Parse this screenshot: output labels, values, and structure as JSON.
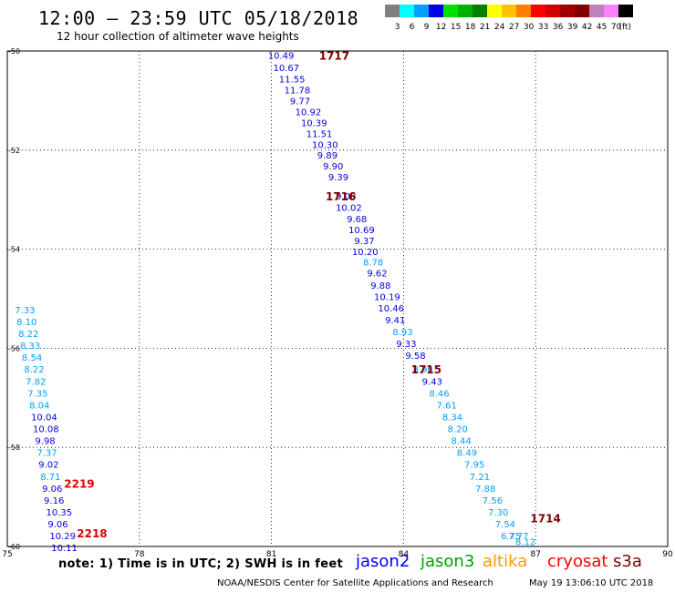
{
  "header": {
    "title": "12:00 – 23:59 UTC 05/18/2018",
    "subtitle": "12 hour collection of altimeter wave heights"
  },
  "legend": {
    "unit": "(ft)",
    "bins": [
      {
        "label": "3",
        "color": "#808080"
      },
      {
        "label": "6",
        "color": "#00ffff"
      },
      {
        "label": "9",
        "color": "#00a0ff"
      },
      {
        "label": "12",
        "color": "#0000e0"
      },
      {
        "label": "15",
        "color": "#00e000"
      },
      {
        "label": "18",
        "color": "#00b000"
      },
      {
        "label": "21",
        "color": "#008000"
      },
      {
        "label": "24",
        "color": "#ffff00"
      },
      {
        "label": "27",
        "color": "#ffc000"
      },
      {
        "label": "30",
        "color": "#ff8000"
      },
      {
        "label": "33",
        "color": "#ff0000"
      },
      {
        "label": "36",
        "color": "#d00000"
      },
      {
        "label": "39",
        "color": "#a00000"
      },
      {
        "label": "42",
        "color": "#800000"
      },
      {
        "label": "45",
        "color": "#c080c0"
      },
      {
        "label": "70",
        "color": "#ff80ff"
      },
      {
        "label": "",
        "color": "#000000"
      }
    ]
  },
  "footer": {
    "note": "note:  1) Time is in UTC;  2) SWH is in feet",
    "satellites": [
      {
        "name": "jason2",
        "color": "#0000ff"
      },
      {
        "name": "jason3",
        "color": "#00a000"
      },
      {
        "name": "altika",
        "color": "#ff9900"
      },
      {
        "name": "cryosat",
        "color": "#ff0000"
      },
      {
        "name": "s3a",
        "color": "#800000"
      }
    ],
    "credit": "NOAA/NESDIS Center for Satellite Applications and Research",
    "timestamp": "May 19 13:06:10 UTC 2018"
  },
  "chart_data": {
    "type": "scatter",
    "xlim": [
      75,
      90
    ],
    "ylim": [
      -60,
      -50
    ],
    "x_ticks": [
      "75",
      "78",
      "81",
      "84",
      "87",
      "90"
    ],
    "y_ticks": [
      "-50",
      "-52",
      "-54",
      "-56",
      "-58",
      "-60"
    ],
    "grid": true,
    "colors": {
      "low": "#00a0ff",
      "high": "#0000e0"
    },
    "time_labels": [
      {
        "label": "1717",
        "lon": 82.08,
        "lat": -50.08,
        "color": "#800000"
      },
      {
        "label": "1716",
        "lon": 82.23,
        "lat": -52.92,
        "color": "#800000"
      },
      {
        "label": "1715",
        "lon": 84.17,
        "lat": -56.42,
        "color": "#800000"
      },
      {
        "label": "1714",
        "lon": 86.88,
        "lat": -59.42,
        "color": "#800000"
      },
      {
        "label": "2219",
        "lon": 76.29,
        "lat": -58.72,
        "color": "#e00000"
      },
      {
        "label": "2218",
        "lon": 76.58,
        "lat": -59.72,
        "color": "#e00000"
      }
    ],
    "tracks": [
      {
        "name": "track-east",
        "points": [
          {
            "lon": 80.92,
            "lat": -50.08,
            "v": "10.49"
          },
          {
            "lon": 81.04,
            "lat": -50.33,
            "v": "10.67"
          },
          {
            "lon": 81.17,
            "lat": -50.56,
            "v": "11.55"
          },
          {
            "lon": 81.29,
            "lat": -50.78,
            "v": "11.78"
          },
          {
            "lon": 81.42,
            "lat": -51.0,
            "v": "9.77"
          },
          {
            "lon": 81.54,
            "lat": -51.22,
            "v": "10.92"
          },
          {
            "lon": 81.67,
            "lat": -51.44,
            "v": "10.39"
          },
          {
            "lon": 81.79,
            "lat": -51.66,
            "v": "11.51"
          },
          {
            "lon": 81.92,
            "lat": -51.88,
            "v": "10.30"
          },
          {
            "lon": 82.04,
            "lat": -52.1,
            "v": "9.89"
          },
          {
            "lon": 82.17,
            "lat": -52.32,
            "v": "9.90"
          },
          {
            "lon": 82.29,
            "lat": -52.54,
            "v": "9.39"
          },
          {
            "lon": 82.46,
            "lat": -52.92,
            "v": "9.08"
          },
          {
            "lon": 82.46,
            "lat": -53.15,
            "v": "10.02"
          },
          {
            "lon": 82.71,
            "lat": -53.38,
            "v": "9.68"
          },
          {
            "lon": 82.75,
            "lat": -53.6,
            "v": "10.69"
          },
          {
            "lon": 82.88,
            "lat": -53.82,
            "v": "9.37"
          },
          {
            "lon": 82.83,
            "lat": -54.04,
            "v": "10.20"
          },
          {
            "lon": 83.08,
            "lat": -54.26,
            "v": "8.78"
          },
          {
            "lon": 83.17,
            "lat": -54.48,
            "v": "9.62"
          },
          {
            "lon": 83.25,
            "lat": -54.72,
            "v": "9.88"
          },
          {
            "lon": 83.33,
            "lat": -54.95,
            "v": "10.19"
          },
          {
            "lon": 83.42,
            "lat": -55.18,
            "v": "10.46"
          },
          {
            "lon": 83.58,
            "lat": -55.42,
            "v": "9.41"
          },
          {
            "lon": 83.75,
            "lat": -55.66,
            "v": "8.93"
          },
          {
            "lon": 83.83,
            "lat": -55.9,
            "v": "9.33"
          },
          {
            "lon": 84.04,
            "lat": -56.14,
            "v": "9.58"
          },
          {
            "lon": 84.21,
            "lat": -56.42,
            "v": "8.90"
          },
          {
            "lon": 84.42,
            "lat": -56.66,
            "v": "9.43"
          },
          {
            "lon": 84.58,
            "lat": -56.9,
            "v": "8.46"
          },
          {
            "lon": 84.75,
            "lat": -57.14,
            "v": "7.61"
          },
          {
            "lon": 84.88,
            "lat": -57.38,
            "v": "8.34"
          },
          {
            "lon": 85.0,
            "lat": -57.62,
            "v": "8.20"
          },
          {
            "lon": 85.08,
            "lat": -57.86,
            "v": "8.44"
          },
          {
            "lon": 85.21,
            "lat": -58.1,
            "v": "8.49"
          },
          {
            "lon": 85.38,
            "lat": -58.34,
            "v": "7.95"
          },
          {
            "lon": 85.5,
            "lat": -58.58,
            "v": "7.21"
          },
          {
            "lon": 85.63,
            "lat": -58.82,
            "v": "7.88"
          },
          {
            "lon": 85.79,
            "lat": -59.06,
            "v": "7.56"
          },
          {
            "lon": 85.92,
            "lat": -59.3,
            "v": "7.30"
          },
          {
            "lon": 86.08,
            "lat": -59.54,
            "v": "7.54"
          },
          {
            "lon": 86.21,
            "lat": -59.78,
            "v": "6.75"
          },
          {
            "lon": 86.38,
            "lat": -59.78,
            "v": "7.77"
          },
          {
            "lon": 86.54,
            "lat": -59.9,
            "v": "8.12"
          }
        ]
      },
      {
        "name": "track-west",
        "points": [
          {
            "lon": 75.17,
            "lat": -55.22,
            "v": "7.33"
          },
          {
            "lon": 75.21,
            "lat": -55.46,
            "v": "8.10"
          },
          {
            "lon": 75.25,
            "lat": -55.7,
            "v": "8.22"
          },
          {
            "lon": 75.29,
            "lat": -55.94,
            "v": "8.33"
          },
          {
            "lon": 75.33,
            "lat": -56.18,
            "v": "8.54"
          },
          {
            "lon": 75.38,
            "lat": -56.42,
            "v": "8.22"
          },
          {
            "lon": 75.42,
            "lat": -56.66,
            "v": "7.82"
          },
          {
            "lon": 75.46,
            "lat": -56.9,
            "v": "7.35"
          },
          {
            "lon": 75.5,
            "lat": -57.14,
            "v": "8.04"
          },
          {
            "lon": 75.54,
            "lat": -57.38,
            "v": "10.04"
          },
          {
            "lon": 75.58,
            "lat": -57.62,
            "v": "10.08"
          },
          {
            "lon": 75.63,
            "lat": -57.86,
            "v": "9.98"
          },
          {
            "lon": 75.67,
            "lat": -58.1,
            "v": "7.37"
          },
          {
            "lon": 75.71,
            "lat": -58.34,
            "v": "9.02"
          },
          {
            "lon": 75.75,
            "lat": -58.58,
            "v": "8.71"
          },
          {
            "lon": 75.79,
            "lat": -58.82,
            "v": "9.06"
          },
          {
            "lon": 75.83,
            "lat": -59.06,
            "v": "9.16"
          },
          {
            "lon": 75.88,
            "lat": -59.3,
            "v": "10.35"
          },
          {
            "lon": 75.92,
            "lat": -59.54,
            "v": "9.06"
          },
          {
            "lon": 75.96,
            "lat": -59.78,
            "v": "10.29"
          },
          {
            "lon": 76.0,
            "lat": -60.02,
            "v": "10.11"
          }
        ]
      }
    ]
  }
}
